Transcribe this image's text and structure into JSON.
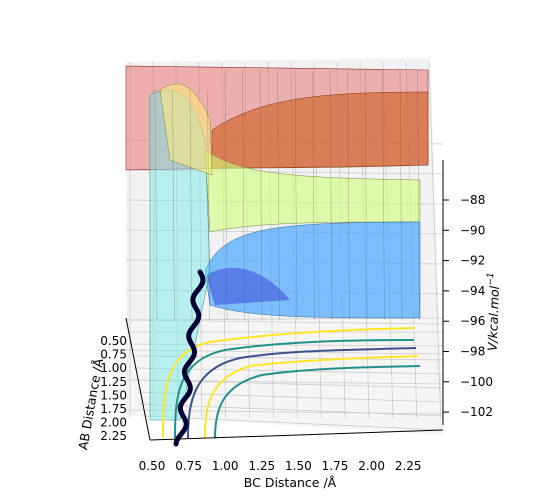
{
  "chart_data": {
    "type": "surface",
    "xlabel": "BC Distance /Å",
    "ylabel": "AB Distance /Å",
    "zlabel": "V/kcal.mol",
    "zlabel_superscript": "−1",
    "x_ticks": [
      "0.50",
      "0.75",
      "1.00",
      "1.25",
      "1.50",
      "1.75",
      "2.00",
      "2.25"
    ],
    "y_ticks": [
      "0.50",
      "0.75",
      "1.00",
      "1.25",
      "1.50",
      "1.75",
      "2.00",
      "2.25"
    ],
    "z_ticks": [
      "−88",
      "−90",
      "−92",
      "−94",
      "−96",
      "−98",
      "−100",
      "−102"
    ],
    "xlim": [
      0.4,
      2.4
    ],
    "ylim": [
      0.4,
      2.4
    ],
    "zlim": [
      -103.5,
      -86
    ],
    "grid": true,
    "colormap": [
      "#3a4bd8",
      "#4aa8ff",
      "#6fe8e8",
      "#cfff7a",
      "#fff07a",
      "#ff9f70",
      "#e65a5a"
    ],
    "contour_colors": [
      "#fde725",
      "#21918c",
      "#3b528b"
    ],
    "trajectory_color": "#000033",
    "trajectory": {
      "start": {
        "ab": 0.74,
        "bc": 2.3
      },
      "end": {
        "ab": 2.3,
        "bc": 0.74
      },
      "style": "oscillating path along reaction channel"
    }
  }
}
